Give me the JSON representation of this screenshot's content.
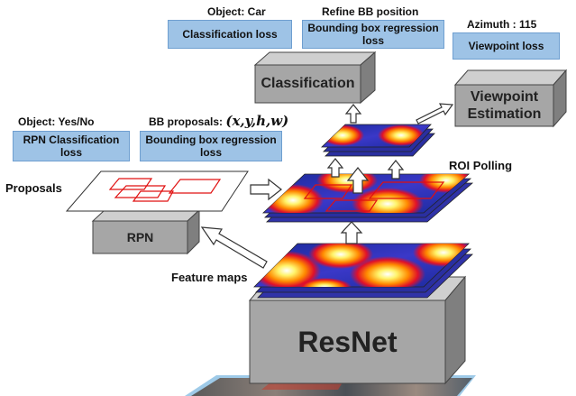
{
  "top": {
    "object_car": "Object: Car",
    "refine_bb": "Refine BB position",
    "azimuth": "Azimuth : 115",
    "classification_loss": "Classification loss",
    "bbox_regression_loss_line1": "Bounding box regression",
    "bbox_regression_loss_line2": "loss",
    "viewpoint_loss": "Viewpoint loss"
  },
  "left": {
    "object_yes_no": "Object: Yes/No",
    "bb_proposals_prefix": "BB proposals: ",
    "bb_proposals_math": "(x,y,h,w)",
    "rpn_class_loss_line1": "RPN Classification",
    "rpn_class_loss_line2": "loss",
    "rpn_bbox_loss_line1": "Bounding box regression",
    "rpn_bbox_loss_line2": "loss"
  },
  "blocks": {
    "classification": "Classification",
    "viewpoint_line1": "Viewpoint",
    "viewpoint_line2": "Estimation",
    "rpn": "RPN",
    "resnet": "ResNet"
  },
  "labels": {
    "proposals": "Proposals",
    "roi_polling": "ROI Polling",
    "feature_maps": "Feature maps"
  },
  "colors": {
    "loss_box": "#9ec3e6",
    "block_front": "#a6a6a6",
    "block_top": "#cfcfcf",
    "block_side": "#7f7f7f"
  }
}
